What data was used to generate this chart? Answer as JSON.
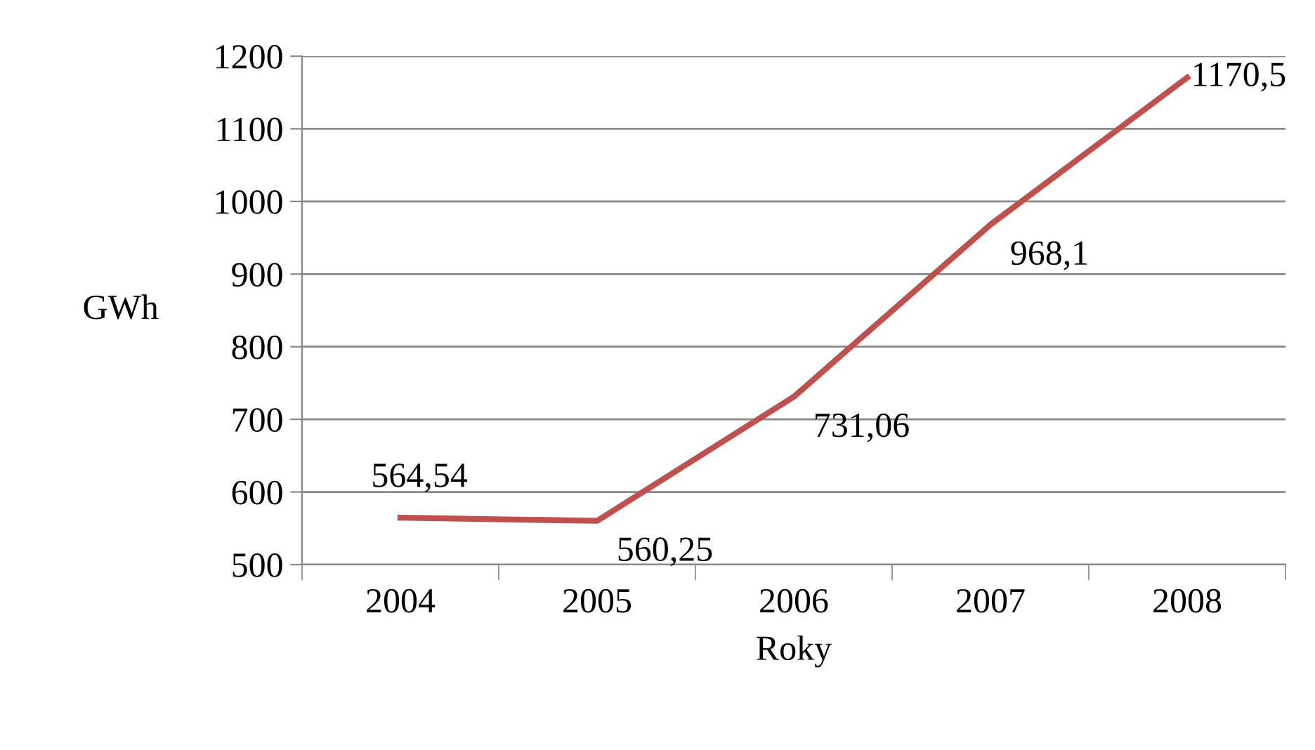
{
  "chart_data": {
    "type": "line",
    "xlabel": "Roky",
    "ylabel": "GWh",
    "categories": [
      "2004",
      "2005",
      "2006",
      "2007",
      "2008"
    ],
    "series": [
      {
        "color": "#c0504d",
        "values": [
          564.54,
          560.25,
          731.06,
          968.1,
          1170.5
        ],
        "value_labels": [
          "564,54",
          "560,25",
          "731,06",
          "968,1",
          "1170,5"
        ]
      }
    ],
    "ylim": [
      500,
      1200
    ],
    "yticks": [
      500,
      600,
      700,
      800,
      900,
      1000,
      1100,
      1200
    ],
    "grid": "y",
    "marker": "none",
    "line_style": "solid"
  }
}
